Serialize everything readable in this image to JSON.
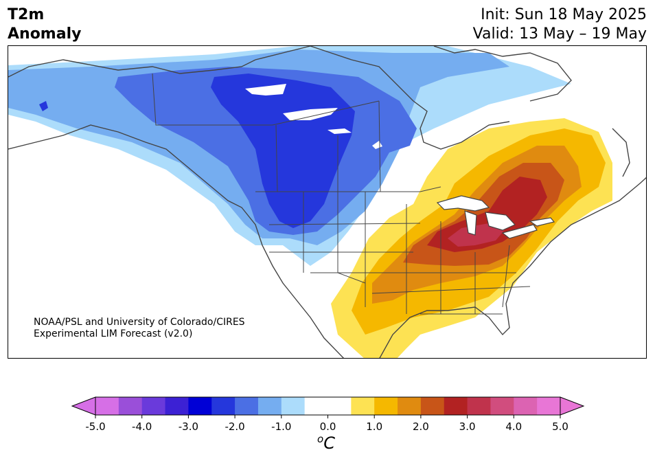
{
  "header": {
    "variable": "T2m",
    "variable_sub": "Anomaly",
    "init": "Init: Sun 18 May 2025",
    "valid": "Valid: 13 May – 19 May"
  },
  "credit": {
    "line1": "NOAA/PSL and University of Colorado/CIRES",
    "line2": "Experimental LIM Forecast (v2.0)"
  },
  "colorbar": {
    "unit_base": "C",
    "unit_sup": "o",
    "ticks": [
      "-5.0",
      "-4.0",
      "-3.0",
      "-2.0",
      "-1.0",
      "0.0",
      "1.0",
      "2.0",
      "3.0",
      "4.0",
      "5.0"
    ],
    "min": -5.0,
    "max": 5.0,
    "step": 0.5,
    "colors": [
      "#d66fe6",
      "#9a4fd9",
      "#6a3adb",
      "#3c21d4",
      "#0000d6",
      "#2537dc",
      "#4b6fe4",
      "#75adf0",
      "#acdcfb",
      "#ffffff",
      "#ffffff",
      "#fde253",
      "#f5b800",
      "#e08b10",
      "#c85518",
      "#b22222",
      "#c0334c",
      "#d14d7e",
      "#dc63b2",
      "#e876d6"
    ],
    "under_color": "#d66fe6",
    "over_color": "#e876d6"
  },
  "map_colors": {
    "cold1": "#acdcfb",
    "cold2": "#75adf0",
    "cold3": "#4b6fe4",
    "cold4": "#2537dc",
    "warm1": "#fde253",
    "warm2": "#f5b800",
    "warm3": "#e08b10",
    "warm4": "#c85518",
    "warm5": "#b22222",
    "warm6": "#c0334c"
  }
}
